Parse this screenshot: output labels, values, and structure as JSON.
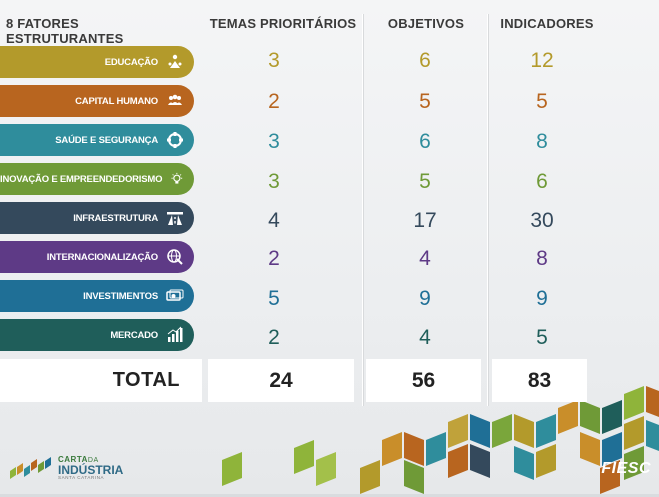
{
  "headers": {
    "fatores": "8 FATORES ESTRUTURANTES",
    "temas": "TEMAS PRIORITÁRIOS",
    "objetivos": "OBJETIVOS",
    "indicadores": "INDICADORES"
  },
  "rows": [
    {
      "label": "EDUCAÇÃO",
      "icon": "education-people-icon",
      "color": "#b39a2b",
      "temas": "3",
      "objetivos": "6",
      "indicadores": "12"
    },
    {
      "label": "CAPITAL HUMANO",
      "icon": "team-icon",
      "color": "#b8651f",
      "temas": "2",
      "objetivos": "5",
      "indicadores": "5"
    },
    {
      "label": "SAÚDE E SEGURANÇA",
      "icon": "health-cross-icon",
      "color": "#2f8d9c",
      "temas": "3",
      "objetivos": "6",
      "indicadores": "8"
    },
    {
      "label": "INOVAÇÃO E EMPREENDEDORISMO",
      "icon": "lightbulb-icon",
      "color": "#6f9a37",
      "temas": "3",
      "objetivos": "5",
      "indicadores": "6"
    },
    {
      "label": "INFRAESTRUTURA",
      "icon": "road-icon",
      "color": "#34495c",
      "temas": "4",
      "objetivos": "17",
      "indicadores": "30"
    },
    {
      "label": "INTERNACIONALIZAÇÃO",
      "icon": "globe-icon",
      "color": "#5e3a86",
      "temas": "2",
      "objetivos": "4",
      "indicadores": "8"
    },
    {
      "label": "INVESTIMENTOS",
      "icon": "money-icon",
      "color": "#1f6f96",
      "temas": "5",
      "objetivos": "9",
      "indicadores": "9"
    },
    {
      "label": "MERCADO",
      "icon": "bar-chart-icon",
      "color": "#1f5e5a",
      "temas": "2",
      "objetivos": "4",
      "indicadores": "5"
    }
  ],
  "total": {
    "label": "TOTAL",
    "temas": "24",
    "objetivos": "56",
    "indicadores": "83"
  },
  "brand": {
    "carta": "CARTA",
    "da": "DA",
    "industria": "INDÚSTRIA",
    "sub": "SANTA CATARINA",
    "fiesc": "FIESC"
  }
}
